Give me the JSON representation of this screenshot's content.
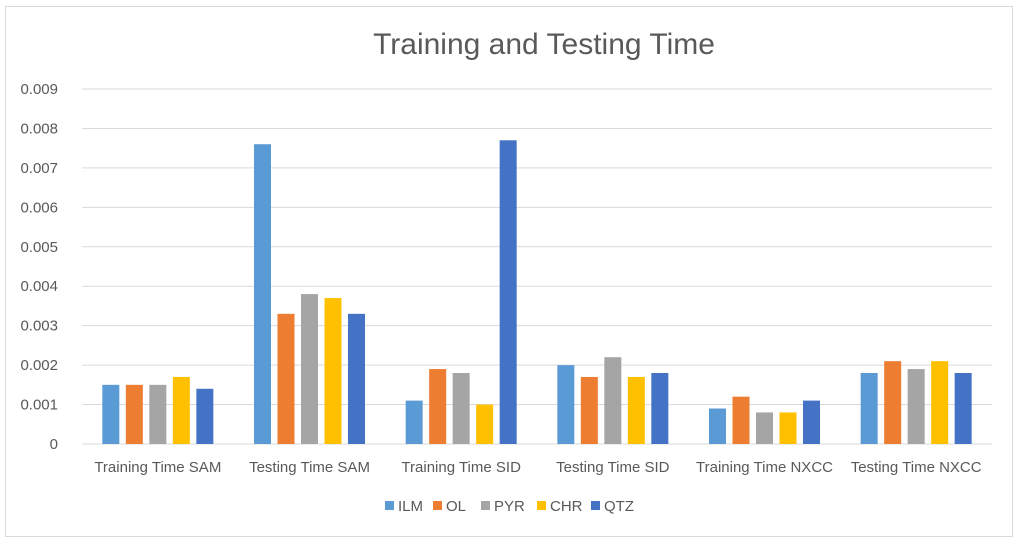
{
  "chart_data": {
    "type": "bar",
    "title": "Training and Testing Time",
    "xlabel": "",
    "ylabel": "",
    "ylim": [
      0,
      0.009
    ],
    "yticks": [
      "0",
      "0.001",
      "0.002",
      "0.003",
      "0.004",
      "0.005",
      "0.006",
      "0.007",
      "0.008",
      "0.009"
    ],
    "grid": true,
    "legend_position": "bottom",
    "categories": [
      "Training Time SAM",
      "Testing Time SAM",
      "Training Time SID",
      "Testing Time SID",
      "Training Time NXCC",
      "Testing Time NXCC"
    ],
    "series": [
      {
        "name": "ILM",
        "color": "#5b9bd5",
        "values": [
          0.0015,
          0.0076,
          0.0011,
          0.002,
          0.0009,
          0.0018
        ]
      },
      {
        "name": "OL",
        "color": "#ed7d31",
        "values": [
          0.0015,
          0.0033,
          0.0019,
          0.0017,
          0.0012,
          0.0021
        ]
      },
      {
        "name": "PYR",
        "color": "#a5a5a5",
        "values": [
          0.0015,
          0.0038,
          0.0018,
          0.0022,
          0.0008,
          0.0019
        ]
      },
      {
        "name": "CHR",
        "color": "#ffc000",
        "values": [
          0.0017,
          0.0037,
          0.001,
          0.0017,
          0.0008,
          0.0021
        ]
      },
      {
        "name": "QTZ",
        "color": "#4472c4",
        "values": [
          0.0014,
          0.0033,
          0.0077,
          0.0018,
          0.0011,
          0.0018
        ]
      }
    ]
  }
}
